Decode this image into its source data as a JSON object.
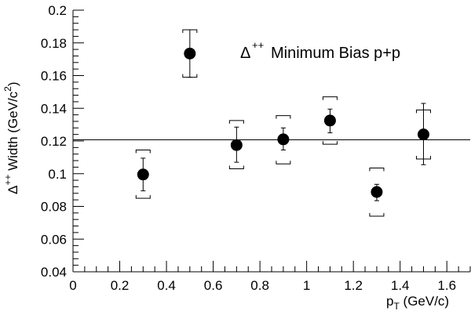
{
  "chart_data": {
    "type": "scatter",
    "title": "",
    "xlabel": "p_T (GeV/c)",
    "ylabel": "Δ++ Width (GeV/c²)",
    "xlim": [
      0,
      1.7
    ],
    "ylim": [
      0.04,
      0.2
    ],
    "grid": false,
    "legend": {
      "text": "Minimum Bias p+p",
      "symbol": "Δ",
      "superscript": "++",
      "placement": "top-right"
    },
    "x_ticks": [
      0,
      0.2,
      0.4,
      0.6,
      0.8,
      1,
      1.2,
      1.4,
      1.6
    ],
    "y_ticks": [
      0.04,
      0.06,
      0.08,
      0.1,
      0.12,
      0.14,
      0.16,
      0.18,
      0.2
    ],
    "x_tick_labels": [
      "0",
      "0.2",
      "0.4",
      "0.6",
      "0.8",
      "1",
      "1.2",
      "1.4",
      "1.6"
    ],
    "y_tick_labels": [
      "0.04",
      "0.06",
      "0.08",
      "0.1",
      "0.12",
      "0.14",
      "0.16",
      "0.18",
      "0.2"
    ],
    "reference_line": 0.1207,
    "points": [
      {
        "x": 0.3,
        "y": 0.0995,
        "stat_lo": 0.0895,
        "stat_hi": 0.1095,
        "sys_lo": 0.085,
        "sys_hi": 0.1145
      },
      {
        "x": 0.5,
        "y": 0.1735,
        "stat_lo": 0.159,
        "stat_hi": 0.188,
        "sys_lo": 0.159,
        "sys_hi": 0.188
      },
      {
        "x": 0.7,
        "y": 0.1175,
        "stat_lo": 0.107,
        "stat_hi": 0.1285,
        "sys_lo": 0.103,
        "sys_hi": 0.1325
      },
      {
        "x": 0.9,
        "y": 0.121,
        "stat_lo": 0.1145,
        "stat_hi": 0.128,
        "sys_lo": 0.106,
        "sys_hi": 0.1355
      },
      {
        "x": 1.1,
        "y": 0.1325,
        "stat_lo": 0.125,
        "stat_hi": 0.1395,
        "sys_lo": 0.118,
        "sys_hi": 0.147
      },
      {
        "x": 1.3,
        "y": 0.0888,
        "stat_lo": 0.0835,
        "stat_hi": 0.0935,
        "sys_lo": 0.074,
        "sys_hi": 0.1035
      },
      {
        "x": 1.5,
        "y": 0.124,
        "stat_lo": 0.1055,
        "stat_hi": 0.143,
        "sys_lo": 0.109,
        "sys_hi": 0.139
      }
    ]
  }
}
